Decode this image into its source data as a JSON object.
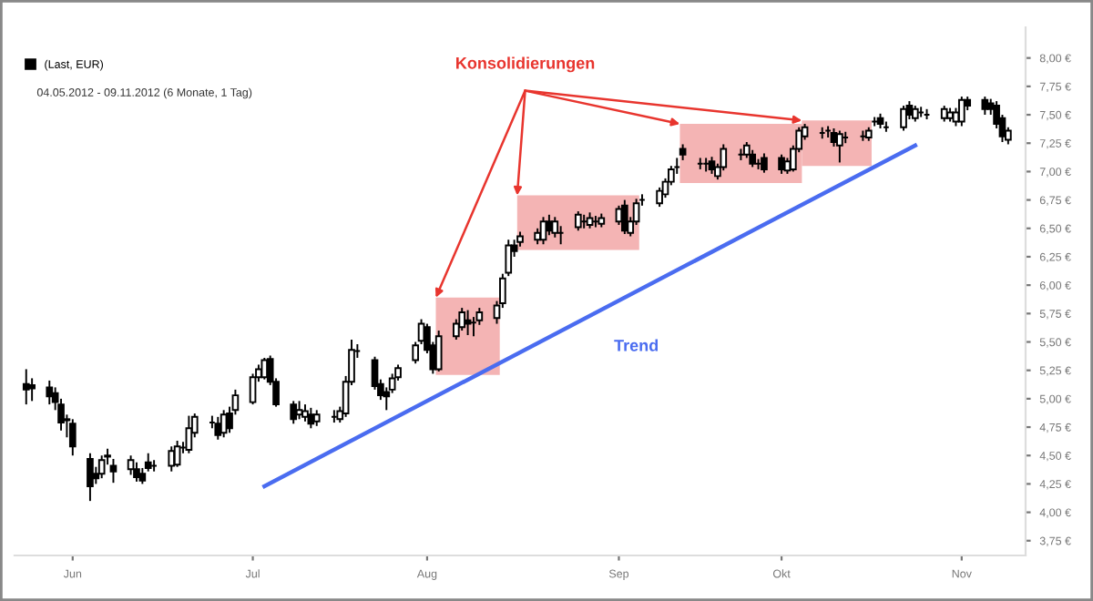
{
  "chart_data": {
    "type": "candlestick",
    "subtitle": "04.05.2012 - 09.11.2012 (6 Monate, 1 Tag)",
    "series": [
      {
        "type": "candlestick",
        "name": "(Last, EUR)",
        "color": "#000000",
        "x": [
          "2012-05-24",
          "2012-05-25",
          "2012-05-28",
          "2012-05-29",
          "2012-05-30",
          "2012-05-31",
          "2012-06-01",
          "2012-06-04",
          "2012-06-05",
          "2012-06-06",
          "2012-06-07",
          "2012-06-08",
          "2012-06-11",
          "2012-06-12",
          "2012-06-13",
          "2012-06-14",
          "2012-06-15",
          "2012-06-18",
          "2012-06-19",
          "2012-06-20",
          "2012-06-21",
          "2012-06-22",
          "2012-06-25",
          "2012-06-26",
          "2012-06-27",
          "2012-06-28",
          "2012-06-29",
          "2012-07-02",
          "2012-07-03",
          "2012-07-04",
          "2012-07-05",
          "2012-07-06",
          "2012-07-09",
          "2012-07-10",
          "2012-07-11",
          "2012-07-12",
          "2012-07-13",
          "2012-07-16",
          "2012-07-17",
          "2012-07-18",
          "2012-07-19",
          "2012-07-20",
          "2012-07-23",
          "2012-07-24",
          "2012-07-25",
          "2012-07-26",
          "2012-07-27",
          "2012-07-30",
          "2012-07-31",
          "2012-08-01",
          "2012-08-02",
          "2012-08-03",
          "2012-08-06",
          "2012-08-07",
          "2012-08-08",
          "2012-08-09",
          "2012-08-10",
          "2012-08-13",
          "2012-08-14",
          "2012-08-15",
          "2012-08-16",
          "2012-08-17",
          "2012-08-20",
          "2012-08-21",
          "2012-08-22",
          "2012-08-23",
          "2012-08-24",
          "2012-08-27",
          "2012-08-28",
          "2012-08-29",
          "2012-08-30",
          "2012-08-31",
          "2012-09-03",
          "2012-09-04",
          "2012-09-05",
          "2012-09-06",
          "2012-09-07",
          "2012-09-10",
          "2012-09-11",
          "2012-09-12",
          "2012-09-13",
          "2012-09-14",
          "2012-09-17",
          "2012-09-18",
          "2012-09-19",
          "2012-09-20",
          "2012-09-21",
          "2012-09-24",
          "2012-09-25",
          "2012-09-26",
          "2012-09-27",
          "2012-09-28",
          "2012-10-01",
          "2012-10-02",
          "2012-10-03",
          "2012-10-04",
          "2012-10-05",
          "2012-10-08",
          "2012-10-09",
          "2012-10-10",
          "2012-10-11",
          "2012-10-12",
          "2012-10-15",
          "2012-10-16",
          "2012-10-17",
          "2012-10-18",
          "2012-10-19",
          "2012-10-22",
          "2012-10-23",
          "2012-10-24",
          "2012-10-25",
          "2012-10-26",
          "2012-10-29",
          "2012-10-30",
          "2012-10-31",
          "2012-11-01",
          "2012-11-02",
          "2012-11-05",
          "2012-11-06",
          "2012-11-07",
          "2012-11-08",
          "2012-11-09"
        ],
        "ohlc": [
          [
            5.13,
            5.26,
            4.95,
            5.08
          ],
          [
            5.12,
            5.18,
            4.98,
            5.09
          ],
          [
            5.1,
            5.16,
            4.95,
            5.02
          ],
          [
            5.05,
            5.1,
            4.9,
            4.97
          ],
          [
            4.95,
            5.0,
            4.72,
            4.79
          ],
          [
            4.82,
            4.86,
            4.66,
            4.81
          ],
          [
            4.78,
            4.82,
            4.5,
            4.58
          ],
          [
            4.47,
            4.52,
            4.1,
            4.23
          ],
          [
            4.34,
            4.4,
            4.25,
            4.3
          ],
          [
            4.34,
            4.5,
            4.3,
            4.46
          ],
          [
            4.49,
            4.56,
            4.42,
            4.5
          ],
          [
            4.41,
            4.47,
            4.26,
            4.36
          ],
          [
            4.38,
            4.5,
            4.33,
            4.46
          ],
          [
            4.38,
            4.44,
            4.27,
            4.31
          ],
          [
            4.34,
            4.39,
            4.25,
            4.28
          ],
          [
            4.44,
            4.52,
            4.36,
            4.39
          ],
          [
            4.41,
            4.46,
            4.36,
            4.41
          ],
          [
            4.41,
            4.58,
            4.36,
            4.54
          ],
          [
            4.42,
            4.63,
            4.4,
            4.58
          ],
          [
            4.57,
            4.62,
            4.52,
            4.57
          ],
          [
            4.55,
            4.85,
            4.52,
            4.74
          ],
          [
            4.7,
            4.87,
            4.66,
            4.84
          ],
          [
            4.79,
            4.85,
            4.74,
            4.79
          ],
          [
            4.78,
            4.84,
            4.64,
            4.68
          ],
          [
            4.7,
            4.9,
            4.66,
            4.86
          ],
          [
            4.87,
            4.93,
            4.7,
            4.74
          ],
          [
            4.9,
            5.08,
            4.86,
            5.03
          ],
          [
            4.97,
            5.22,
            4.95,
            5.19
          ],
          [
            5.19,
            5.3,
            5.15,
            5.26
          ],
          [
            5.19,
            5.36,
            5.17,
            5.34
          ],
          [
            5.35,
            5.38,
            5.12,
            5.15
          ],
          [
            5.15,
            5.18,
            4.93,
            4.95
          ],
          [
            4.95,
            4.98,
            4.78,
            4.82
          ],
          [
            4.86,
            4.98,
            4.82,
            4.9
          ],
          [
            4.84,
            4.95,
            4.8,
            4.89
          ],
          [
            4.86,
            4.92,
            4.74,
            4.78
          ],
          [
            4.8,
            4.9,
            4.76,
            4.86
          ],
          [
            4.84,
            4.9,
            4.79,
            4.84
          ],
          [
            4.82,
            4.93,
            4.79,
            4.89
          ],
          [
            4.87,
            5.2,
            4.84,
            5.15
          ],
          [
            5.15,
            5.52,
            5.12,
            5.43
          ],
          [
            5.42,
            5.48,
            5.36,
            5.42
          ],
          [
            5.34,
            5.37,
            5.08,
            5.11
          ],
          [
            5.13,
            5.17,
            4.99,
            5.03
          ],
          [
            5.06,
            5.1,
            4.9,
            5.02
          ],
          [
            5.08,
            5.22,
            5.05,
            5.18
          ],
          [
            5.19,
            5.3,
            5.16,
            5.27
          ],
          [
            5.34,
            5.5,
            5.31,
            5.47
          ],
          [
            5.51,
            5.7,
            5.48,
            5.66
          ],
          [
            5.63,
            5.66,
            5.4,
            5.43
          ],
          [
            5.47,
            5.5,
            5.22,
            5.26
          ],
          [
            5.26,
            5.6,
            5.24,
            5.55
          ],
          [
            5.55,
            5.7,
            5.52,
            5.66
          ],
          [
            5.63,
            5.8,
            5.6,
            5.76
          ],
          [
            5.69,
            5.78,
            5.56,
            5.66
          ],
          [
            5.67,
            5.72,
            5.55,
            5.67
          ],
          [
            5.69,
            5.8,
            5.65,
            5.76
          ],
          [
            5.71,
            5.86,
            5.66,
            5.82
          ],
          [
            5.84,
            6.1,
            5.8,
            6.06
          ],
          [
            6.11,
            6.4,
            6.08,
            6.35
          ],
          [
            6.35,
            6.4,
            6.25,
            6.3
          ],
          [
            6.38,
            6.47,
            6.34,
            6.43
          ],
          [
            6.4,
            6.5,
            6.36,
            6.46
          ],
          [
            6.4,
            6.6,
            6.36,
            6.56
          ],
          [
            6.56,
            6.62,
            6.44,
            6.48
          ],
          [
            6.46,
            6.6,
            6.42,
            6.56
          ],
          [
            6.46,
            6.52,
            6.36,
            6.46
          ],
          [
            6.51,
            6.65,
            6.48,
            6.62
          ],
          [
            6.56,
            6.62,
            6.5,
            6.56
          ],
          [
            6.53,
            6.64,
            6.5,
            6.59
          ],
          [
            6.56,
            6.61,
            6.51,
            6.56
          ],
          [
            6.54,
            6.63,
            6.51,
            6.59
          ],
          [
            6.56,
            6.7,
            6.53,
            6.67
          ],
          [
            6.7,
            6.75,
            6.45,
            6.48
          ],
          [
            6.46,
            6.6,
            6.43,
            6.56
          ],
          [
            6.56,
            6.76,
            6.53,
            6.72
          ],
          [
            6.75,
            6.8,
            6.7,
            6.75
          ],
          [
            6.72,
            6.86,
            6.69,
            6.83
          ],
          [
            6.8,
            6.94,
            6.77,
            6.91
          ],
          [
            6.91,
            7.05,
            6.88,
            7.02
          ],
          [
            7.04,
            7.12,
            6.98,
            7.04
          ],
          [
            7.2,
            7.24,
            7.1,
            7.15
          ],
          [
            7.07,
            7.12,
            7.02,
            7.07
          ],
          [
            7.07,
            7.12,
            7.0,
            7.07
          ],
          [
            7.09,
            7.13,
            6.98,
            7.02
          ],
          [
            6.96,
            7.07,
            6.93,
            7.04
          ],
          [
            7.04,
            7.24,
            7.01,
            7.2
          ],
          [
            7.15,
            7.2,
            7.1,
            7.15
          ],
          [
            7.15,
            7.26,
            7.12,
            7.23
          ],
          [
            7.15,
            7.19,
            7.04,
            7.07
          ],
          [
            7.07,
            7.11,
            7.02,
            7.07
          ],
          [
            7.12,
            7.16,
            6.99,
            7.02
          ],
          [
            7.12,
            7.15,
            6.98,
            7.02
          ],
          [
            7.01,
            7.12,
            6.98,
            7.09
          ],
          [
            7.02,
            7.23,
            7.0,
            7.2
          ],
          [
            7.2,
            7.39,
            7.17,
            7.36
          ],
          [
            7.31,
            7.42,
            7.28,
            7.39
          ],
          [
            7.34,
            7.39,
            7.29,
            7.34
          ],
          [
            7.36,
            7.4,
            7.3,
            7.36
          ],
          [
            7.34,
            7.38,
            7.22,
            7.26
          ],
          [
            7.23,
            7.36,
            7.08,
            7.33
          ],
          [
            7.3,
            7.35,
            7.25,
            7.3
          ],
          [
            7.31,
            7.36,
            7.27,
            7.31
          ],
          [
            7.3,
            7.39,
            7.27,
            7.36
          ],
          [
            7.44,
            7.48,
            7.4,
            7.44
          ],
          [
            7.47,
            7.51,
            7.38,
            7.42
          ],
          [
            7.39,
            7.44,
            7.35,
            7.39
          ],
          [
            7.39,
            7.58,
            7.36,
            7.55
          ],
          [
            7.58,
            7.62,
            7.46,
            7.5
          ],
          [
            7.47,
            7.58,
            7.44,
            7.55
          ],
          [
            7.52,
            7.57,
            7.48,
            7.52
          ],
          [
            7.5,
            7.55,
            7.46,
            7.5
          ],
          [
            7.47,
            7.58,
            7.44,
            7.55
          ],
          [
            7.47,
            7.56,
            7.44,
            7.52
          ],
          [
            7.44,
            7.56,
            7.4,
            7.52
          ],
          [
            7.44,
            7.66,
            7.4,
            7.63
          ],
          [
            7.63,
            7.66,
            7.54,
            7.58
          ],
          [
            7.63,
            7.66,
            7.5,
            7.55
          ],
          [
            7.6,
            7.64,
            7.5,
            7.55
          ],
          [
            7.58,
            7.62,
            7.38,
            7.42
          ],
          [
            7.47,
            7.5,
            7.26,
            7.31
          ],
          [
            7.28,
            7.39,
            7.24,
            7.36
          ]
        ]
      },
      {
        "type": "line",
        "color": "#4a6cf0",
        "x": [
          "2012-07-04",
          "2012-10-24"
        ],
        "values": [
          4.23,
          7.23
        ]
      }
    ],
    "bands": [
      {
        "axis": "x",
        "from": "2012-08-02T12:00",
        "to": "2012-08-13T12:00",
        "color": "#f4b4b4"
      },
      {
        "axis": "x",
        "from": "2012-08-16T12:00",
        "to": "2012-09-06T12:00",
        "color": "#f4b4b4"
      },
      {
        "axis": "x",
        "from": "2012-09-13T12:00",
        "to": "2012-10-04T12:00",
        "color": "#f4b4b4"
      },
      {
        "axis": "x",
        "from": "2012-10-04T12:00",
        "to": "2012-10-16T12:00",
        "color": "#f4b4b4"
      }
    ],
    "annotations": [
      {
        "text": "Konsolidierungen",
        "x": "2012-08-02T12:00",
        "y": 5.89
      },
      "Trend"
    ],
    "xlim": [
      "2012-05-22",
      "2012-11-12"
    ],
    "xticks": [
      {
        "value": "2012-06-01",
        "label": "Jun"
      },
      {
        "value": "2012-07-02",
        "label": "Jul"
      },
      {
        "value": "2012-08-01",
        "label": "Aug"
      },
      {
        "value": "2012-09-03",
        "label": "Sep"
      },
      {
        "value": "2012-10-01",
        "label": "Okt"
      },
      {
        "value": "2012-11-01",
        "label": "Nov"
      }
    ],
    "ylim": [
      3.62,
      8.27
    ],
    "yticks": [
      {
        "value": 3.75,
        "label": "3,75 €"
      },
      {
        "value": 4.0,
        "label": "4,00 €"
      },
      {
        "value": 4.25,
        "label": "4,25 €"
      },
      {
        "value": 4.5,
        "label": "4,50 €"
      },
      {
        "value": 4.75,
        "label": "4,75 €"
      },
      {
        "value": 5.0,
        "label": "5,00 €"
      },
      {
        "value": 5.25,
        "label": "5,25 €"
      },
      {
        "value": 5.5,
        "label": "5,50 €"
      },
      {
        "value": 5.75,
        "label": "5,75 €"
      },
      {
        "value": 6.0,
        "label": "6,00 €"
      },
      {
        "value": 6.25,
        "label": "6,25 €"
      },
      {
        "value": 6.5,
        "label": "6,50 €"
      },
      {
        "value": 6.75,
        "label": "6,75 €"
      },
      {
        "value": 7.0,
        "label": "7,00 €"
      },
      {
        "value": 7.25,
        "label": "7,25 €"
      },
      {
        "value": 7.5,
        "label": "7,50 €"
      },
      {
        "value": 7.75,
        "label": "7,75 €"
      },
      {
        "value": 8.0,
        "label": "8,00 €"
      }
    ],
    "legend": "top left",
    "grid": false
  }
}
